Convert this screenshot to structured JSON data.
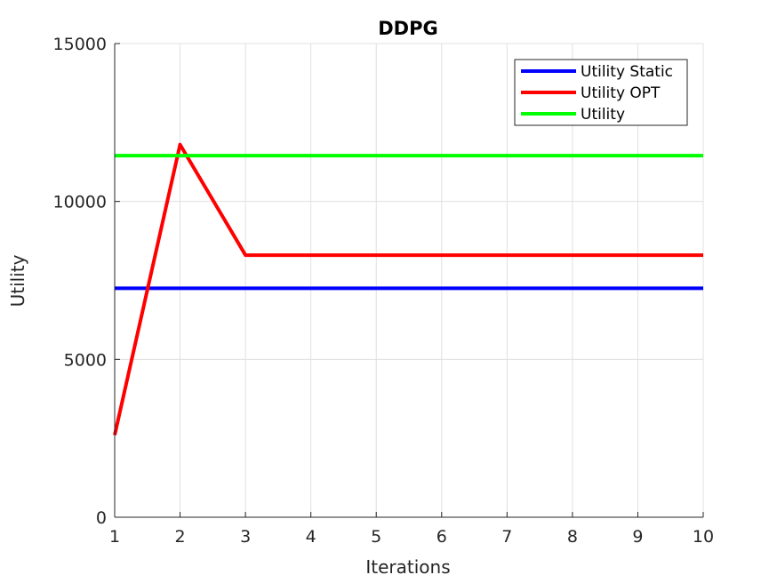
{
  "chart_data": {
    "type": "line",
    "title": "DDPG",
    "xlabel": "Iterations",
    "ylabel": "Utility",
    "xlim": [
      1,
      10
    ],
    "ylim": [
      0,
      15000
    ],
    "xticks": [
      1,
      2,
      3,
      4,
      5,
      6,
      7,
      8,
      9,
      10
    ],
    "yticks": [
      0,
      5000,
      10000,
      15000
    ],
    "xtick_labels": [
      "1",
      "2",
      "3",
      "4",
      "5",
      "6",
      "7",
      "8",
      "9",
      "10"
    ],
    "ytick_labels": [
      "0",
      "5000",
      "10000",
      "15000"
    ],
    "grid": true,
    "legend_position": "top-right",
    "x": [
      1,
      2,
      3,
      4,
      5,
      6,
      7,
      8,
      9,
      10
    ],
    "series": [
      {
        "name": "Utility Static",
        "color": "#0000ff",
        "values": [
          7250,
          7250,
          7250,
          7250,
          7250,
          7250,
          7250,
          7250,
          7250,
          7250
        ]
      },
      {
        "name": "Utility OPT",
        "color": "#ff0000",
        "values": [
          2600,
          11800,
          8300,
          8300,
          8300,
          8300,
          8300,
          8300,
          8300,
          8300
        ]
      },
      {
        "name": "Utility",
        "color": "#00ff00",
        "values": [
          11450,
          11450,
          11450,
          11450,
          11450,
          11450,
          11450,
          11450,
          11450,
          11450
        ]
      }
    ]
  }
}
